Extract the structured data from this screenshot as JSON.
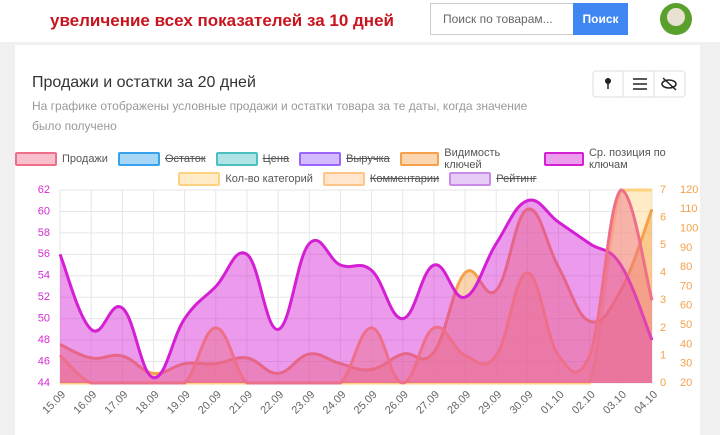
{
  "header": {
    "title": "увеличение всех показателей за 10 дней",
    "search_placeholder": "Поиск по товарам...",
    "search_button": "Поиск"
  },
  "card": {
    "title": "Продажи и остатки за 20 дней",
    "subtitle": "На графике отображены условные продажи и остатки товара за те даты, когда значение было получено"
  },
  "chart_data": {
    "type": "line",
    "categories": [
      "15.09",
      "16.09",
      "17.09",
      "18.09",
      "19.09",
      "20.09",
      "21.09",
      "22.09",
      "23.09",
      "24.09",
      "25.09",
      "26.09",
      "27.09",
      "28.09",
      "29.09",
      "30.09",
      "01.10",
      "02.10",
      "03.10",
      "04.10"
    ],
    "series": [
      {
        "name": "Продажи",
        "color": "#ee6f8a",
        "axis": "y2",
        "values": [
          1,
          0,
          0,
          0,
          0,
          2,
          0,
          0,
          0,
          0,
          2,
          0,
          2,
          1,
          1,
          4,
          1,
          1,
          7,
          3
        ]
      },
      {
        "name": "Остаток",
        "color": "#36a2eb",
        "hidden": true
      },
      {
        "name": "Цена",
        "color": "#4bc0c0",
        "hidden": true
      },
      {
        "name": "Выручка",
        "color": "#9966ff",
        "hidden": true
      },
      {
        "name": "Видимость ключей",
        "color": "#f5a04a",
        "axis": "y3",
        "values": [
          40,
          33,
          34,
          25,
          30,
          30,
          33,
          25,
          35,
          30,
          27,
          35,
          36,
          77,
          68,
          110,
          80,
          52,
          68,
          110
        ]
      },
      {
        "name": "Ср. позиция по ключам",
        "color": "#d41fd4",
        "axis": "y",
        "values": [
          56,
          49,
          51,
          44.5,
          50,
          53,
          56,
          49,
          57,
          55,
          54.5,
          50,
          55,
          52,
          57,
          61,
          59,
          57,
          55,
          48
        ]
      },
      {
        "name": "Кол-во категорий",
        "color": "#ffd27f",
        "axis": "y2",
        "values": [
          0,
          0,
          0,
          0,
          0,
          0,
          0,
          0,
          0,
          0,
          0,
          0,
          0,
          0,
          0,
          0,
          0,
          0,
          7,
          7
        ]
      },
      {
        "name": "Комментарии",
        "color": "#ffc58a",
        "hidden": true
      },
      {
        "name": "Рейтинг",
        "color": "#c98ae8",
        "hidden": true
      }
    ],
    "ylim": [
      44,
      62
    ],
    "yticks": [
      44,
      46,
      48,
      50,
      52,
      54,
      56,
      58,
      60,
      62
    ],
    "y2lim": [
      0,
      7
    ],
    "y2ticks": [
      0,
      1,
      2,
      3,
      4,
      5,
      6,
      7
    ],
    "y3lim": [
      20,
      120
    ],
    "y3ticks": [
      20,
      30,
      40,
      50,
      60,
      70,
      80,
      90,
      100,
      110,
      120
    ],
    "grid": true
  }
}
